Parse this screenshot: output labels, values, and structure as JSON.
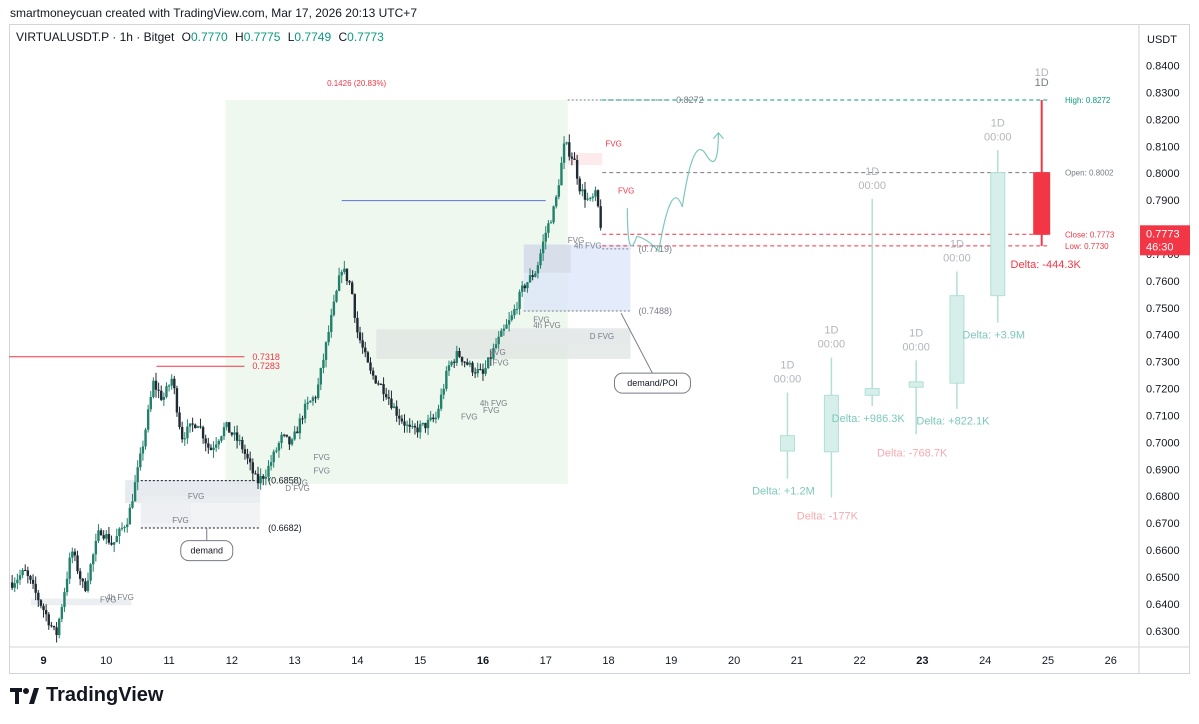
{
  "header": {
    "attribution": "smartmoneycuan created with TradingView.com, Mar 17, 2026 20:13 UTC+7"
  },
  "legend": {
    "symbol": "VIRTUALUSDT.P · 1h · Bitget",
    "o_label": "O",
    "o_value": "0.7770",
    "h_label": "H",
    "h_value": "0.7775",
    "l_label": "L",
    "l_value": "0.7749",
    "c_label": "C",
    "c_value": "0.7773"
  },
  "footer": {
    "brand": "TradingView"
  },
  "colors": {
    "up": "#22806b",
    "down": "#f23645",
    "ghost_up": "#b2dfd6",
    "ghost_down": "#f7b7bd"
  },
  "chart_data": {
    "type": "candlestick",
    "title": "VIRTUALUSDT.P · 1h · Bitget",
    "currency_label": "USDT",
    "y_ticks": [
      "0.6300",
      "0.6400",
      "0.6500",
      "0.6600",
      "0.6700",
      "0.6800",
      "0.6900",
      "0.7000",
      "0.7100",
      "0.7200",
      "0.7300",
      "0.7400",
      "0.7500",
      "0.7600",
      "0.7700",
      "0.7800",
      "0.7900",
      "0.8000",
      "0.8100",
      "0.8200",
      "0.8300",
      "0.8400"
    ],
    "ylim": [
      0.624,
      0.8465
    ],
    "x_ticks": [
      {
        "label": "9",
        "day": 9,
        "bold": true
      },
      {
        "label": "10",
        "day": 10
      },
      {
        "label": "11",
        "day": 11
      },
      {
        "label": "12",
        "day": 12
      },
      {
        "label": "13",
        "day": 13
      },
      {
        "label": "14",
        "day": 14
      },
      {
        "label": "15",
        "day": 15
      },
      {
        "label": "16",
        "day": 16,
        "bold": true
      },
      {
        "label": "17",
        "day": 17
      },
      {
        "label": "18",
        "day": 18
      },
      {
        "label": "19",
        "day": 19
      },
      {
        "label": "20",
        "day": 20
      },
      {
        "label": "21",
        "day": 21
      },
      {
        "label": "22",
        "day": 22
      },
      {
        "label": "23",
        "day": 23,
        "bold": true
      },
      {
        "label": "24",
        "day": 24
      },
      {
        "label": "25",
        "day": 25
      },
      {
        "label": "26",
        "day": 26
      }
    ],
    "xlim_days": [
      8.45,
      26.45
    ],
    "price_path": [
      [
        8.5,
        0.648
      ],
      [
        8.7,
        0.652
      ],
      [
        9.0,
        0.638
      ],
      [
        9.2,
        0.628
      ],
      [
        9.45,
        0.66
      ],
      [
        9.65,
        0.645
      ],
      [
        9.9,
        0.668
      ],
      [
        10.1,
        0.662
      ],
      [
        10.35,
        0.672
      ],
      [
        10.55,
        0.695
      ],
      [
        10.75,
        0.722
      ],
      [
        10.9,
        0.716
      ],
      [
        11.05,
        0.724
      ],
      [
        11.2,
        0.702
      ],
      [
        11.45,
        0.708
      ],
      [
        11.65,
        0.697
      ],
      [
        11.9,
        0.706
      ],
      [
        12.15,
        0.699
      ],
      [
        12.4,
        0.685
      ],
      [
        12.55,
        0.689
      ],
      [
        12.8,
        0.702
      ],
      [
        12.95,
        0.699
      ],
      [
        13.15,
        0.712
      ],
      [
        13.35,
        0.718
      ],
      [
        13.55,
        0.742
      ],
      [
        13.75,
        0.765
      ],
      [
        13.9,
        0.758
      ],
      [
        14.0,
        0.741
      ],
      [
        14.2,
        0.726
      ],
      [
        14.45,
        0.719
      ],
      [
        14.6,
        0.712
      ],
      [
        14.85,
        0.704
      ],
      [
        15.05,
        0.706
      ],
      [
        15.25,
        0.709
      ],
      [
        15.45,
        0.728
      ],
      [
        15.6,
        0.733
      ],
      [
        15.8,
        0.728
      ],
      [
        16.0,
        0.725
      ],
      [
        16.2,
        0.736
      ],
      [
        16.45,
        0.746
      ],
      [
        16.65,
        0.758
      ],
      [
        16.85,
        0.764
      ],
      [
        17.0,
        0.778
      ],
      [
        17.15,
        0.788
      ],
      [
        17.3,
        0.811
      ],
      [
        17.45,
        0.805
      ],
      [
        17.55,
        0.794
      ],
      [
        17.7,
        0.789
      ],
      [
        17.8,
        0.792
      ],
      [
        17.9,
        0.7773
      ]
    ],
    "projection": {
      "type": "curve",
      "points": [
        [
          18.3,
          0.787
        ],
        [
          18.6,
          0.766
        ],
        [
          19.0,
          0.776
        ],
        [
          19.35,
          0.799
        ],
        [
          19.75,
          0.815
        ]
      ]
    },
    "daily_candles": [
      {
        "label": "1D",
        "time": "00:00",
        "x_day": 20.85,
        "open": 0.6968,
        "close": 0.7025,
        "high": 0.7185,
        "low": 0.6865,
        "delta": "Delta: +1.2M",
        "delta_color": "up"
      },
      {
        "label": "1D",
        "time": "00:00",
        "x_day": 21.55,
        "open": 0.6965,
        "close": 0.7175,
        "high": 0.7315,
        "low": 0.6795,
        "delta": "Delta: -177K",
        "delta_color": "down"
      },
      {
        "label": "1D",
        "time": "00:00",
        "x_day": 22.2,
        "open": 0.7175,
        "close": 0.72,
        "high": 0.7905,
        "low": 0.7135,
        "delta": "Delta: +986.3K",
        "delta_color": "up"
      },
      {
        "label": "1D",
        "time": "00:00",
        "x_day": 22.9,
        "open": 0.7205,
        "close": 0.7225,
        "high": 0.7305,
        "low": 0.703,
        "delta": "Delta: -768.7K",
        "delta_color": "down"
      },
      {
        "label": "1D",
        "time": "00:00",
        "x_day": 23.55,
        "open": 0.722,
        "close": 0.7545,
        "high": 0.7635,
        "low": 0.7125,
        "delta": "Delta: +822.1K",
        "delta_color": "up"
      },
      {
        "label": "1D",
        "time": "00:00",
        "x_day": 24.2,
        "open": 0.7545,
        "close": 0.8002,
        "high": 0.8085,
        "low": 0.7445,
        "delta": "Delta: +3.9M",
        "delta_color": "up"
      },
      {
        "label": "1D",
        "time": "",
        "x_day": 24.9,
        "open": 0.8002,
        "close": 0.7773,
        "high": 0.8272,
        "low": 0.773,
        "delta": "Delta: -444.3K",
        "delta_color": "down",
        "current": true
      }
    ],
    "current_ohlc": {
      "high_label": "High: 0.8272",
      "open_label": "Open: 0.8002",
      "close_label": "Close: 0.7773",
      "low_label": "Low: 0.7730",
      "high": 0.8272,
      "open": 0.8002,
      "close": 0.7773,
      "low": 0.773
    },
    "last_price": {
      "value": "0.7773",
      "countdown": "46:30",
      "price": 0.7773
    },
    "measure": {
      "label": "0.1426 (20.83%)",
      "x1": 11.9,
      "x2": 17.35,
      "y1": 0.6846,
      "y2": 0.8272
    },
    "levels": [
      {
        "label": "0.8272",
        "price": 0.8272,
        "x1": 17.35,
        "x2": 18.95,
        "color": "#787b86",
        "text": "0.8272"
      },
      {
        "label": "0.7318",
        "price": 0.7318,
        "x1": 8.45,
        "x2": 12.2,
        "color": "#f23645",
        "text": "0.7318"
      },
      {
        "label": "0.7283",
        "price": 0.7283,
        "x1": 10.8,
        "x2": 12.2,
        "color": "#f23645",
        "text": "0.7283"
      },
      {
        "label": "0.7898",
        "price": 0.7898,
        "x1": 13.75,
        "x2": 17.0,
        "color": "#5b73d6",
        "text": ""
      },
      {
        "label": "(0.7719)",
        "price": 0.7719,
        "x1": 17.9,
        "x2": 18.35,
        "color": "#787b86",
        "text": "(0.7719)"
      },
      {
        "label": "(0.7488)",
        "price": 0.7488,
        "x1": 16.65,
        "x2": 18.35,
        "color": "#787b86",
        "text": "(0.7488)"
      },
      {
        "label": "(0.6858)",
        "price": 0.6858,
        "x1": 10.55,
        "x2": 12.45,
        "color": "#131722",
        "text": "(0.6858)"
      },
      {
        "label": "(0.6682)",
        "price": 0.6682,
        "x1": 10.55,
        "x2": 12.45,
        "color": "#131722",
        "text": "(0.6682)"
      }
    ],
    "fvg_labels": [
      {
        "text": "FVG",
        "x": 17.95,
        "y": 0.81,
        "color": "#f23645"
      },
      {
        "text": "FVG",
        "x": 18.15,
        "y": 0.7925,
        "color": "#f23645"
      },
      {
        "text": "FVG",
        "x": 17.35,
        "y": 0.774,
        "color": "#787b86"
      },
      {
        "text": "4h FVG",
        "x": 17.45,
        "y": 0.772,
        "color": "#787b86"
      },
      {
        "text": "FVG",
        "x": 16.8,
        "y": 0.7445,
        "color": "#787b86"
      },
      {
        "text": "4h FVG",
        "x": 16.8,
        "y": 0.7425,
        "color": "#787b86"
      },
      {
        "text": "D FVG",
        "x": 17.7,
        "y": 0.7385,
        "color": "#787b86"
      },
      {
        "text": "FVG",
        "x": 16.1,
        "y": 0.7325,
        "color": "#787b86"
      },
      {
        "text": "FVG",
        "x": 16.15,
        "y": 0.7285,
        "color": "#787b86"
      },
      {
        "text": "4h FVG",
        "x": 15.95,
        "y": 0.7135,
        "color": "#787b86"
      },
      {
        "text": "FVG",
        "x": 16.0,
        "y": 0.711,
        "color": "#787b86"
      },
      {
        "text": "FVG",
        "x": 15.65,
        "y": 0.7085,
        "color": "#787b86"
      },
      {
        "text": "FVG",
        "x": 13.3,
        "y": 0.6935,
        "color": "#787b86"
      },
      {
        "text": "FVG",
        "x": 13.3,
        "y": 0.6885,
        "color": "#787b86"
      },
      {
        "text": "FVG",
        "x": 12.95,
        "y": 0.684,
        "color": "#787b86"
      },
      {
        "text": "D FVG",
        "x": 12.85,
        "y": 0.682,
        "color": "#787b86"
      },
      {
        "text": "FVG",
        "x": 11.3,
        "y": 0.679,
        "color": "#787b86"
      },
      {
        "text": "FVG",
        "x": 11.05,
        "y": 0.67,
        "color": "#787b86"
      },
      {
        "text": "4h FVG",
        "x": 10.0,
        "y": 0.6415,
        "color": "#787b86"
      },
      {
        "text": "FVG",
        "x": 9.9,
        "y": 0.6405,
        "color": "#787b86"
      }
    ],
    "callouts": [
      {
        "text": "demand",
        "x": 11.6,
        "y": 0.6598,
        "tail_x": 11.6,
        "tail_y": 0.6682
      },
      {
        "text": "demand/POI",
        "x": 18.7,
        "y": 0.722,
        "tail_x": 18.2,
        "tail_y": 0.748
      }
    ],
    "current_tag": "1D"
  }
}
